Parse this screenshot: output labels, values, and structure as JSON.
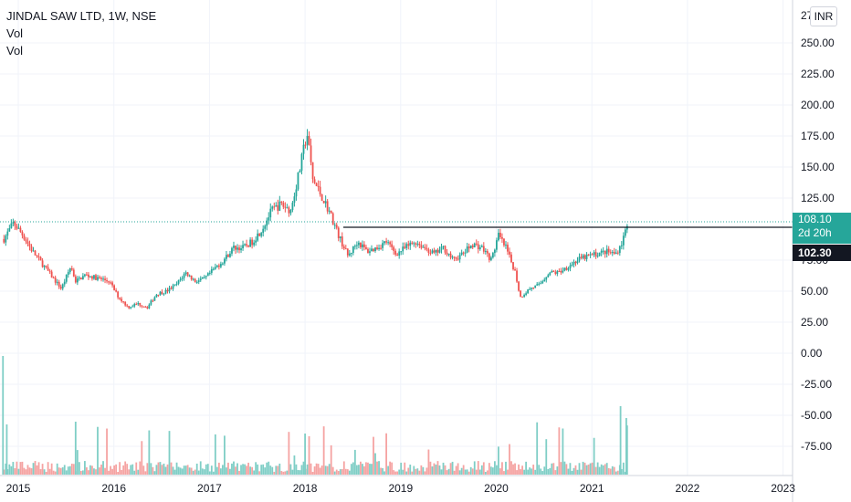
{
  "header": {
    "symbol_title": "JINDAL SAW LTD, 1W, NSE",
    "indicator_1": "Vol",
    "indicator_2": "Vol"
  },
  "currency_button": "INR",
  "price_tags": {
    "last_price": "108.10",
    "countdown": "2d 20h",
    "horizontal_line_price": "102.30"
  },
  "colors": {
    "up": "#26a69a",
    "down": "#ef5350",
    "volume_up": "#7fcec6",
    "volume_down": "#f5a3a2",
    "grid": "#f0f3fa",
    "axis_text": "#131722",
    "line": "#131722"
  },
  "chart_data": {
    "type": "candlestick",
    "symbol": "JINDAL SAW LTD",
    "interval": "1W",
    "exchange": "NSE",
    "y_axis_ticks": [
      "250.00",
      "225.00",
      "200.00",
      "175.00",
      "150.00",
      "125.00",
      "75.00",
      "50.00",
      "25.00",
      "0.00",
      "-25.00",
      "-50.00",
      "-75.00"
    ],
    "y_axis_top_partial": "27",
    "x_axis_ticks": [
      "2015",
      "2016",
      "2017",
      "2018",
      "2019",
      "2020",
      "2021",
      "2022",
      "2023"
    ],
    "last_price": 108.1,
    "horizontal_line": 102.3,
    "price_series": [
      [
        2014.85,
        92
      ],
      [
        2014.95,
        105
      ],
      [
        2015.05,
        95
      ],
      [
        2015.15,
        82
      ],
      [
        2015.25,
        72
      ],
      [
        2015.35,
        62
      ],
      [
        2015.45,
        52
      ],
      [
        2015.55,
        70
      ],
      [
        2015.6,
        58
      ],
      [
        2015.7,
        63
      ],
      [
        2015.85,
        60
      ],
      [
        2015.95,
        58
      ],
      [
        2016.05,
        45
      ],
      [
        2016.15,
        37
      ],
      [
        2016.25,
        40
      ],
      [
        2016.35,
        37
      ],
      [
        2016.45,
        48
      ],
      [
        2016.55,
        50
      ],
      [
        2016.65,
        55
      ],
      [
        2016.75,
        65
      ],
      [
        2016.85,
        58
      ],
      [
        2016.95,
        60
      ],
      [
        2017.05,
        68
      ],
      [
        2017.15,
        75
      ],
      [
        2017.25,
        85
      ],
      [
        2017.35,
        85
      ],
      [
        2017.45,
        90
      ],
      [
        2017.55,
        100
      ],
      [
        2017.65,
        115
      ],
      [
        2017.75,
        120
      ],
      [
        2017.85,
        115
      ],
      [
        2017.95,
        150
      ],
      [
        2018.02,
        178
      ],
      [
        2018.08,
        140
      ],
      [
        2018.15,
        130
      ],
      [
        2018.25,
        115
      ],
      [
        2018.35,
        95
      ],
      [
        2018.45,
        78
      ],
      [
        2018.55,
        90
      ],
      [
        2018.65,
        82
      ],
      [
        2018.75,
        85
      ],
      [
        2018.85,
        90
      ],
      [
        2018.95,
        80
      ],
      [
        2019.05,
        85
      ],
      [
        2019.15,
        90
      ],
      [
        2019.25,
        85
      ],
      [
        2019.35,
        80
      ],
      [
        2019.45,
        85
      ],
      [
        2019.55,
        75
      ],
      [
        2019.65,
        80
      ],
      [
        2019.75,
        88
      ],
      [
        2019.85,
        85
      ],
      [
        2019.95,
        75
      ],
      [
        2020.02,
        95
      ],
      [
        2020.1,
        85
      ],
      [
        2020.2,
        65
      ],
      [
        2020.25,
        45
      ],
      [
        2020.35,
        52
      ],
      [
        2020.45,
        55
      ],
      [
        2020.55,
        65
      ],
      [
        2020.65,
        65
      ],
      [
        2020.75,
        70
      ],
      [
        2020.85,
        75
      ],
      [
        2020.95,
        78
      ],
      [
        2021.05,
        80
      ],
      [
        2021.15,
        82
      ],
      [
        2021.25,
        80
      ],
      [
        2021.32,
        90
      ],
      [
        2021.38,
        108
      ]
    ]
  }
}
